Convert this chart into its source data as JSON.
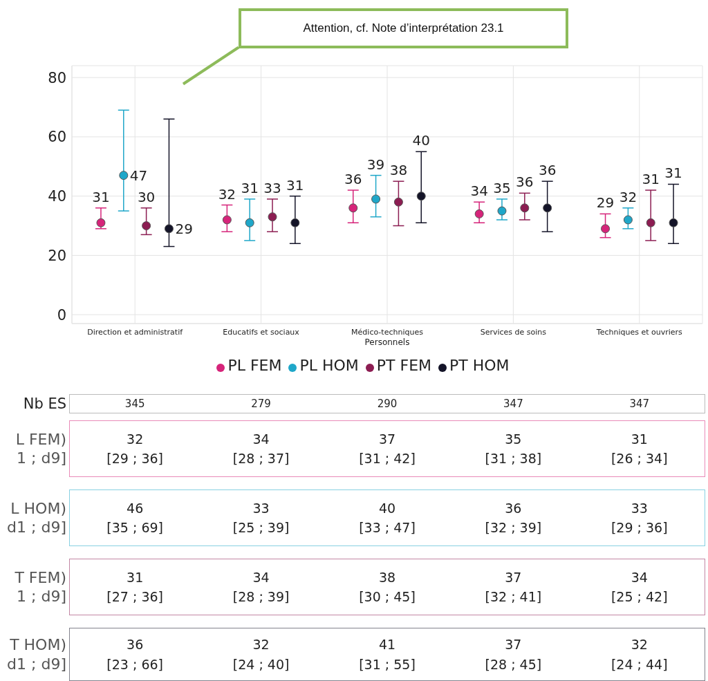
{
  "chart_data": {
    "type": "scatter",
    "categories": [
      "Direction et administratif",
      "Educatifs et sociaux",
      "Médico-techniques",
      "Services de soins",
      "Techniques et ouvriers"
    ],
    "xlabel": "Personnels",
    "ylim": [
      -3,
      84
    ],
    "yticks": [
      0,
      20,
      40,
      60,
      80
    ],
    "grid": true,
    "legend": "bottom",
    "marker": "circle",
    "series": [
      {
        "name": "PL FEM",
        "color": "#d6247a",
        "values": [
          31,
          32,
          36,
          34,
          29
        ],
        "value_labels": [
          "31",
          "32",
          "36",
          "34",
          "29"
        ],
        "errors": [
          [
            29,
            36
          ],
          [
            28,
            37
          ],
          [
            31,
            42
          ],
          [
            31,
            38
          ],
          [
            26,
            34
          ]
        ]
      },
      {
        "name": "PL HOM",
        "color": "#1fa7c9",
        "values": [
          47,
          31,
          39,
          35,
          32
        ],
        "value_labels": [
          "47",
          "31",
          "39",
          "35",
          "32"
        ],
        "errors": [
          [
            35,
            69
          ],
          [
            25,
            39
          ],
          [
            33,
            47
          ],
          [
            32,
            39
          ],
          [
            29,
            36
          ]
        ]
      },
      {
        "name": "PT FEM",
        "color": "#8c1d52",
        "values": [
          30,
          33,
          38,
          36,
          31
        ],
        "value_labels": [
          "30",
          "33",
          "38",
          "36",
          "31"
        ],
        "errors": [
          [
            27,
            36
          ],
          [
            28,
            39
          ],
          [
            30,
            45
          ],
          [
            32,
            41
          ],
          [
            25,
            42
          ]
        ]
      },
      {
        "name": "PT HOM",
        "color": "#141428",
        "values": [
          29,
          31,
          40,
          36,
          31
        ],
        "value_labels": [
          "29",
          "31",
          "40",
          "36",
          "31"
        ],
        "errors": [
          [
            23,
            66
          ],
          [
            24,
            40
          ],
          [
            31,
            55
          ],
          [
            28,
            45
          ],
          [
            24,
            44
          ]
        ]
      }
    ],
    "annotations": [
      "Attention, cf. Note d’interprétation 23.1",
      "Nb ES",
      "345",
      "279",
      "290",
      "347",
      "347",
      "L FEM)\n1 ; d9]",
      "32\n[29 ; 36]",
      "34\n[28 ; 37]",
      "37\n[31 ; 42]",
      "35\n[31 ; 38]",
      "31\n[26 ; 34]",
      "L HOM)\nd1 ; d9]",
      "46\n[35 ; 69]",
      "33\n[25 ; 39]",
      "40\n[33 ; 47]",
      "36\n[32 ; 39]",
      "33\n[29 ; 36]",
      "T FEM)\n1 ; d9]",
      "31\n[27 ; 36]",
      "34\n[28 ; 39]",
      "38\n[30 ; 45]",
      "37\n[32 ; 41]",
      "34\n[25 ; 42]",
      "T HOM)\nd1 ; d9]",
      "36\n[23 ; 66]",
      "32\n[24 ; 40]",
      "41\n[31 ; 55]",
      "37\n[28 ; 45]",
      "32\n[24 ; 44]"
    ]
  }
}
